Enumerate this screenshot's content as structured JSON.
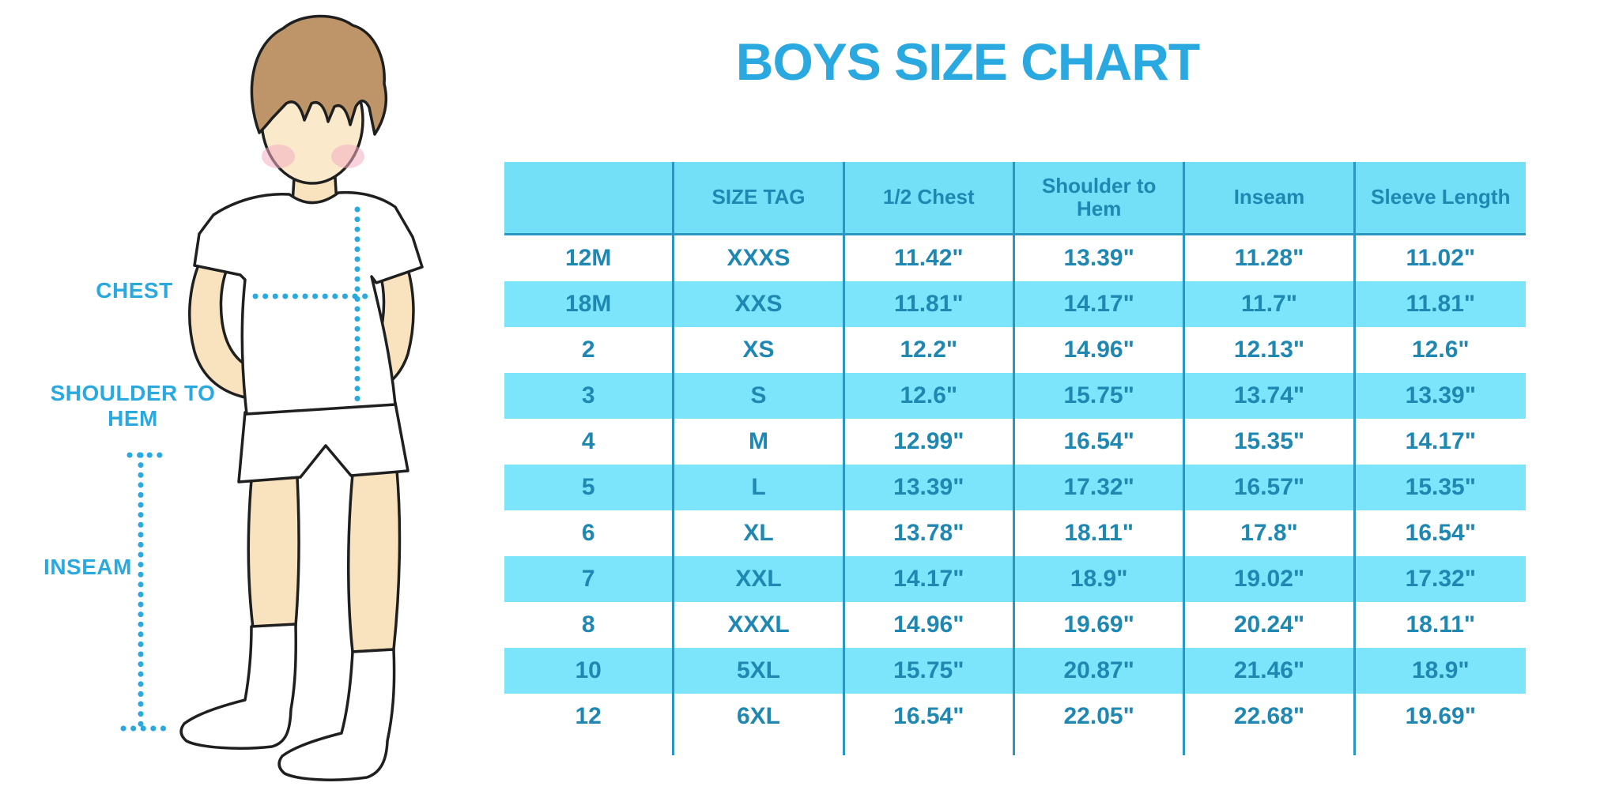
{
  "title": "BOYS SIZE CHART",
  "figure": {
    "type": "boy-measurement-illustration",
    "labels": {
      "chest": "CHEST",
      "shoulder_to_hem": "SHOULDER TO HEM",
      "inseam": "INSEAM"
    }
  },
  "chart_data": {
    "type": "table",
    "title": "BOYS SIZE CHART",
    "columns": [
      "",
      "SIZE TAG",
      "1/2 Chest",
      "Shoulder to Hem",
      "Inseam",
      "Sleeve Length"
    ],
    "rows": [
      [
        "12M",
        "XXXS",
        "11.42\"",
        "13.39\"",
        "11.28\"",
        "11.02\""
      ],
      [
        "18M",
        "XXS",
        "11.81\"",
        "14.17\"",
        "11.7\"",
        "11.81\""
      ],
      [
        "2",
        "XS",
        "12.2\"",
        "14.96\"",
        "12.13\"",
        "12.6\""
      ],
      [
        "3",
        "S",
        "12.6\"",
        "15.75\"",
        "13.74\"",
        "13.39\""
      ],
      [
        "4",
        "M",
        "12.99\"",
        "16.54\"",
        "15.35\"",
        "14.17\""
      ],
      [
        "5",
        "L",
        "13.39\"",
        "17.32\"",
        "16.57\"",
        "15.35\""
      ],
      [
        "6",
        "XL",
        "13.78\"",
        "18.11\"",
        "17.8\"",
        "16.54\""
      ],
      [
        "7",
        "XXL",
        "14.17\"",
        "18.9\"",
        "19.02\"",
        "17.32\""
      ],
      [
        "8",
        "XXXL",
        "14.96\"",
        "19.69\"",
        "20.24\"",
        "18.11\""
      ],
      [
        "10",
        "5XL",
        "15.75\"",
        "20.87\"",
        "21.46\"",
        "18.9\""
      ],
      [
        "12",
        "6XL",
        "16.54\"",
        "22.05\"",
        "22.68\"",
        "19.69\""
      ]
    ],
    "zebra_striping": "alternating white and cyan rows",
    "legend_position": "none",
    "grid": "vertical column separators only"
  },
  "colors": {
    "title_text": "#29A9E0",
    "label_text": "#29A9E0",
    "table_text": "#1E87B2",
    "header_bg": "#74E0F8",
    "row_alt_bg": "#7DE5FB",
    "grid_line": "#2A97C2",
    "dotted_line": "#29A9E0",
    "skin": "#F9E3BE",
    "face": "#FBE9CC",
    "hair": "#BD9568",
    "blush": "#F2AFC1",
    "outline": "#1F1F1F",
    "clothing": "#FFFFFF"
  }
}
